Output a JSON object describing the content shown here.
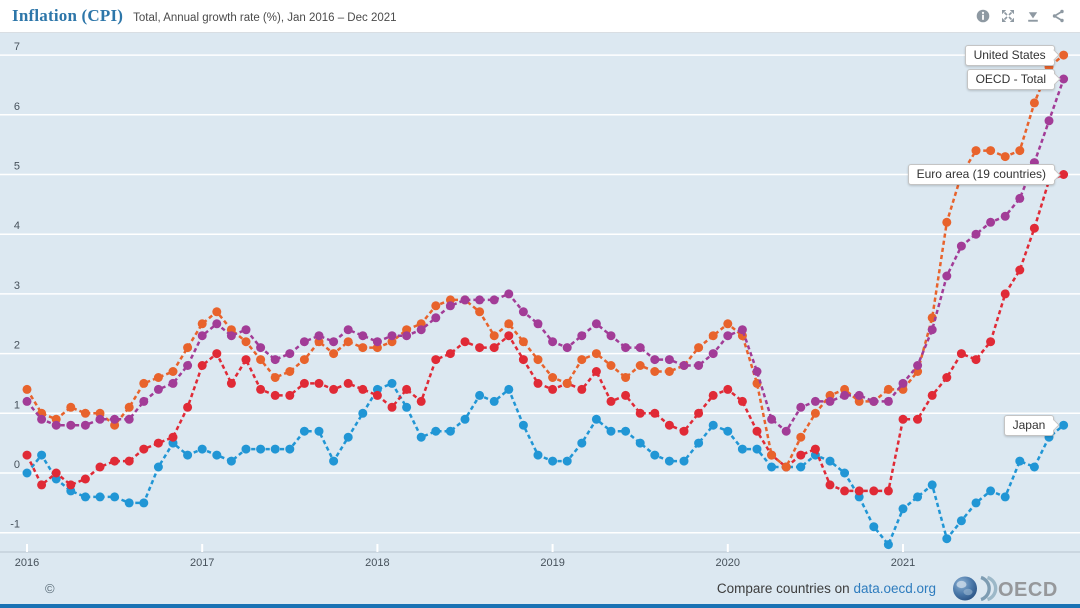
{
  "header": {
    "icons": [
      {
        "name": "info-icon"
      },
      {
        "name": "fullscreen-icon"
      },
      {
        "name": "download-icon"
      },
      {
        "name": "share-icon"
      }
    ]
  },
  "footer": {
    "copyright": "©",
    "compare_text": "Compare countries on",
    "compare_link": "data.oecd.org",
    "logo_text": "OECD"
  },
  "chart_data": {
    "type": "line",
    "title": "Inflation (CPI)",
    "subtitle": "Total, Annual growth rate (%), Jan 2016 – Dec 2021",
    "x_unit": "month",
    "x_start": "Jan 2016",
    "x_end": "Dec 2021",
    "year_ticks": [
      "2016",
      "2017",
      "2018",
      "2019",
      "2020",
      "2021"
    ],
    "yticks": [
      -1,
      0,
      1,
      2,
      3,
      4,
      5,
      6,
      7
    ],
    "ylim": [
      -1.35,
      7.35
    ],
    "grid": true,
    "line_style": "dashed-with-dots",
    "legend_position": "end-of-line tooltip labels",
    "background_color": "#dce8f1",
    "gridline_color": "#ffffff",
    "series": [
      {
        "name": "United States",
        "color": "#e8632c",
        "values": [
          1.4,
          1.0,
          0.9,
          1.1,
          1.0,
          1.0,
          0.8,
          1.1,
          1.5,
          1.6,
          1.7,
          2.1,
          2.5,
          2.7,
          2.4,
          2.2,
          1.9,
          1.6,
          1.7,
          1.9,
          2.2,
          2.0,
          2.2,
          2.1,
          2.1,
          2.2,
          2.4,
          2.5,
          2.8,
          2.9,
          2.9,
          2.7,
          2.3,
          2.5,
          2.2,
          1.9,
          1.6,
          1.5,
          1.9,
          2.0,
          1.8,
          1.6,
          1.8,
          1.7,
          1.7,
          1.8,
          2.1,
          2.3,
          2.5,
          2.3,
          1.5,
          0.3,
          0.1,
          0.6,
          1.0,
          1.3,
          1.4,
          1.2,
          1.2,
          1.4,
          1.4,
          1.7,
          2.6,
          4.2,
          5.0,
          5.4,
          5.4,
          5.3,
          5.4,
          6.2,
          6.8,
          7.0
        ]
      },
      {
        "name": "OECD - Total",
        "color": "#a23c97",
        "values": [
          1.2,
          0.9,
          0.8,
          0.8,
          0.8,
          0.9,
          0.9,
          0.9,
          1.2,
          1.4,
          1.5,
          1.8,
          2.3,
          2.5,
          2.3,
          2.4,
          2.1,
          1.9,
          2.0,
          2.2,
          2.3,
          2.2,
          2.4,
          2.3,
          2.2,
          2.3,
          2.3,
          2.4,
          2.6,
          2.8,
          2.9,
          2.9,
          2.9,
          3.0,
          2.7,
          2.5,
          2.2,
          2.1,
          2.3,
          2.5,
          2.3,
          2.1,
          2.1,
          1.9,
          1.9,
          1.8,
          1.8,
          2.0,
          2.3,
          2.4,
          1.7,
          0.9,
          0.7,
          1.1,
          1.2,
          1.2,
          1.3,
          1.3,
          1.2,
          1.2,
          1.5,
          1.8,
          2.4,
          3.3,
          3.8,
          4.0,
          4.2,
          4.3,
          4.6,
          5.2,
          5.9,
          6.6
        ]
      },
      {
        "name": "Euro area (19 countries)",
        "color": "#e02a36",
        "values": [
          0.3,
          -0.2,
          0.0,
          -0.2,
          -0.1,
          0.1,
          0.2,
          0.2,
          0.4,
          0.5,
          0.6,
          1.1,
          1.8,
          2.0,
          1.5,
          1.9,
          1.4,
          1.3,
          1.3,
          1.5,
          1.5,
          1.4,
          1.5,
          1.4,
          1.3,
          1.1,
          1.4,
          1.2,
          1.9,
          2.0,
          2.2,
          2.1,
          2.1,
          2.3,
          1.9,
          1.5,
          1.4,
          1.5,
          1.4,
          1.7,
          1.2,
          1.3,
          1.0,
          1.0,
          0.8,
          0.7,
          1.0,
          1.3,
          1.4,
          1.2,
          0.7,
          0.3,
          0.1,
          0.3,
          0.4,
          -0.2,
          -0.3,
          -0.3,
          -0.3,
          -0.3,
          0.9,
          0.9,
          1.3,
          1.6,
          2.0,
          1.9,
          2.2,
          3.0,
          3.4,
          4.1,
          4.9,
          5.0
        ]
      },
      {
        "name": "Japan",
        "color": "#2196d5",
        "values": [
          0.0,
          0.3,
          -0.1,
          -0.3,
          -0.4,
          -0.4,
          -0.4,
          -0.5,
          -0.5,
          0.1,
          0.5,
          0.3,
          0.4,
          0.3,
          0.2,
          0.4,
          0.4,
          0.4,
          0.4,
          0.7,
          0.7,
          0.2,
          0.6,
          1.0,
          1.4,
          1.5,
          1.1,
          0.6,
          0.7,
          0.7,
          0.9,
          1.3,
          1.2,
          1.4,
          0.8,
          0.3,
          0.2,
          0.2,
          0.5,
          0.9,
          0.7,
          0.7,
          0.5,
          0.3,
          0.2,
          0.2,
          0.5,
          0.8,
          0.7,
          0.4,
          0.4,
          0.1,
          0.1,
          0.1,
          0.3,
          0.2,
          0.0,
          -0.4,
          -0.9,
          -1.2,
          -0.6,
          -0.4,
          -0.2,
          -1.1,
          -0.8,
          -0.5,
          -0.3,
          -0.4,
          0.2,
          0.1,
          0.6,
          0.8
        ]
      }
    ]
  }
}
